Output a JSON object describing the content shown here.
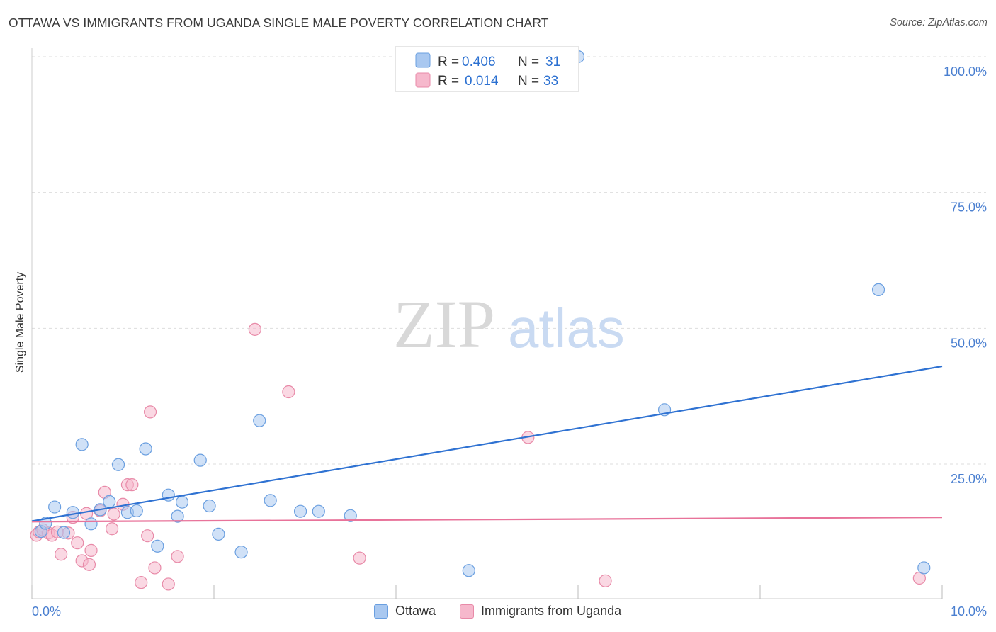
{
  "title": "OTTAWA VS IMMIGRANTS FROM UGANDA SINGLE MALE POVERTY CORRELATION CHART",
  "source": "Source: ZipAtlas.com",
  "watermark": {
    "zip": "ZIP",
    "atlas": "atlas"
  },
  "colors": {
    "ottawa_fill": "#a9c8f0",
    "ottawa_stroke": "#6a9fe0",
    "ottawa_line": "#2f72d2",
    "uganda_fill": "#f6b8cc",
    "uganda_stroke": "#e88aa8",
    "uganda_line": "#e8739a",
    "tick_label": "#4a7fd0",
    "grid": "#dddddd"
  },
  "legend": {
    "rows": [
      {
        "r_label": "R =",
        "r_value": "0.406",
        "n_label": "N =",
        "n_value": "31"
      },
      {
        "r_label": "R =",
        "r_value": "0.014",
        "n_label": "N =",
        "n_value": "33"
      }
    ]
  },
  "bottom_legend": [
    "Ottawa",
    "Immigrants from Uganda"
  ],
  "chart_data": {
    "type": "scatter",
    "title": "OTTAWA VS IMMIGRANTS FROM UGANDA SINGLE MALE POVERTY CORRELATION CHART",
    "xlabel": "",
    "ylabel": "Single Male Poverty",
    "xlim": [
      0,
      10
    ],
    "ylim": [
      0,
      105
    ],
    "x_tick_labels": [
      "0.0%",
      "10.0%"
    ],
    "y_ticks": [
      25,
      50,
      75,
      100
    ],
    "y_tick_labels": [
      "25.0%",
      "50.0%",
      "75.0%",
      "100.0%"
    ],
    "grid": true,
    "series": [
      {
        "name": "Ottawa",
        "r": 0.406,
        "n": 31,
        "trend": {
          "x": [
            0,
            10
          ],
          "y": [
            14.5,
            43.0
          ]
        },
        "points": [
          [
            0.1,
            12.6
          ],
          [
            0.15,
            14.1
          ],
          [
            0.25,
            17.1
          ],
          [
            0.35,
            12.4
          ],
          [
            0.45,
            16.1
          ],
          [
            0.55,
            28.6
          ],
          [
            0.65,
            14.0
          ],
          [
            0.75,
            16.6
          ],
          [
            0.85,
            18.1
          ],
          [
            0.95,
            24.9
          ],
          [
            1.05,
            16.1
          ],
          [
            1.15,
            16.4
          ],
          [
            1.25,
            27.8
          ],
          [
            1.38,
            9.9
          ],
          [
            1.5,
            19.3
          ],
          [
            1.6,
            15.4
          ],
          [
            1.65,
            18.0
          ],
          [
            1.85,
            25.7
          ],
          [
            1.95,
            17.3
          ],
          [
            2.05,
            12.1
          ],
          [
            2.3,
            8.8
          ],
          [
            2.5,
            33.0
          ],
          [
            2.62,
            18.3
          ],
          [
            2.95,
            16.3
          ],
          [
            3.15,
            16.3
          ],
          [
            3.5,
            15.5
          ],
          [
            4.8,
            5.4
          ],
          [
            6.0,
            100.0
          ],
          [
            6.95,
            35.0
          ],
          [
            9.3,
            57.1
          ],
          [
            9.8,
            5.9
          ]
        ]
      },
      {
        "name": "Immigrants from Uganda",
        "r": 0.014,
        "n": 33,
        "trend": {
          "x": [
            0,
            10
          ],
          "y": [
            14.4,
            15.2
          ]
        },
        "points": [
          [
            0.05,
            11.9
          ],
          [
            0.08,
            12.5
          ],
          [
            0.12,
            12.9
          ],
          [
            0.18,
            12.3
          ],
          [
            0.22,
            11.9
          ],
          [
            0.28,
            12.5
          ],
          [
            0.32,
            8.4
          ],
          [
            0.4,
            12.3
          ],
          [
            0.45,
            15.2
          ],
          [
            0.5,
            10.5
          ],
          [
            0.55,
            7.2
          ],
          [
            0.6,
            15.9
          ],
          [
            0.63,
            6.5
          ],
          [
            0.65,
            9.1
          ],
          [
            0.75,
            16.4
          ],
          [
            0.8,
            19.8
          ],
          [
            0.88,
            13.1
          ],
          [
            0.9,
            15.8
          ],
          [
            1.0,
            17.6
          ],
          [
            1.05,
            21.2
          ],
          [
            1.1,
            21.2
          ],
          [
            1.2,
            3.2
          ],
          [
            1.27,
            11.8
          ],
          [
            1.3,
            34.6
          ],
          [
            1.35,
            5.9
          ],
          [
            1.5,
            2.9
          ],
          [
            1.6,
            8.0
          ],
          [
            2.45,
            49.8
          ],
          [
            2.82,
            38.3
          ],
          [
            3.6,
            7.7
          ],
          [
            5.45,
            29.9
          ],
          [
            6.3,
            3.5
          ],
          [
            9.75,
            4.0
          ]
        ]
      }
    ]
  }
}
